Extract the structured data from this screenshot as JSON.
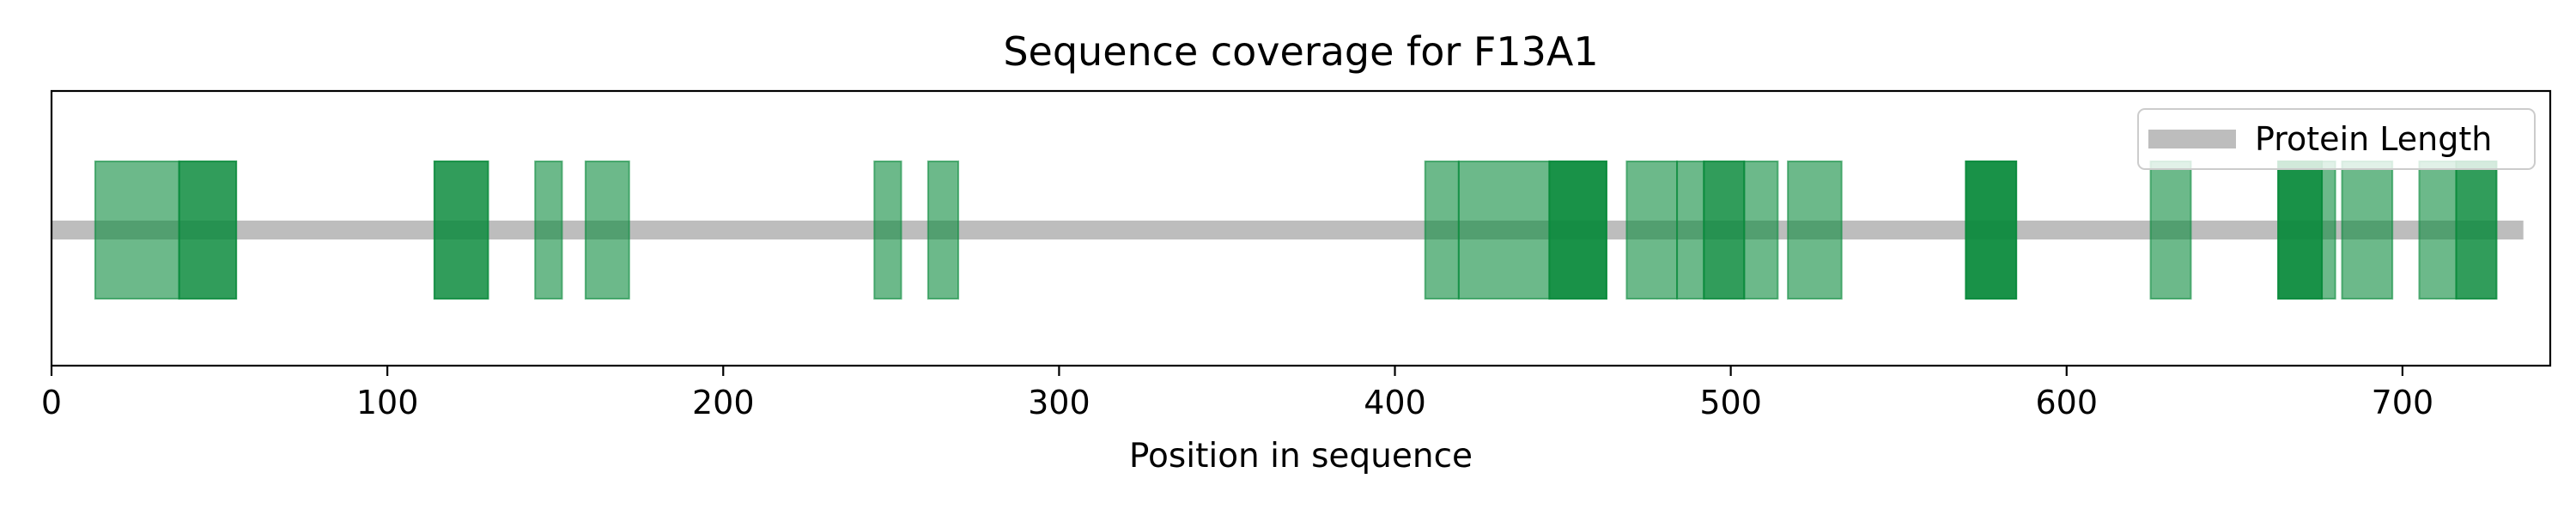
{
  "chart_data": {
    "type": "bar",
    "title": "Sequence coverage for F13A1",
    "xlabel": "Position in sequence",
    "ylabel": "",
    "xlim": [
      0,
      744
    ],
    "xticks": [
      0,
      100,
      200,
      300,
      400,
      500,
      600,
      700
    ],
    "protein_length": 736,
    "legend": {
      "label": "Protein Length",
      "location": "upper right"
    },
    "colors": {
      "peptide": "#0a8a3c",
      "protein": "#bdbdbd"
    },
    "peptide_opacity": 0.6,
    "peptides": [
      {
        "start": 13,
        "end": 38
      },
      {
        "start": 38,
        "end": 55
      },
      {
        "start": 38,
        "end": 55
      },
      {
        "start": 114,
        "end": 130
      },
      {
        "start": 114,
        "end": 130
      },
      {
        "start": 144,
        "end": 152
      },
      {
        "start": 159,
        "end": 172
      },
      {
        "start": 245,
        "end": 253
      },
      {
        "start": 261,
        "end": 270
      },
      {
        "start": 409,
        "end": 419
      },
      {
        "start": 419,
        "end": 446
      },
      {
        "start": 446,
        "end": 463
      },
      {
        "start": 446,
        "end": 463
      },
      {
        "start": 446,
        "end": 463
      },
      {
        "start": 469,
        "end": 484
      },
      {
        "start": 484,
        "end": 492
      },
      {
        "start": 492,
        "end": 504
      },
      {
        "start": 492,
        "end": 504
      },
      {
        "start": 504,
        "end": 514
      },
      {
        "start": 517,
        "end": 533
      },
      {
        "start": 570,
        "end": 585
      },
      {
        "start": 570,
        "end": 585
      },
      {
        "start": 570,
        "end": 585
      },
      {
        "start": 625,
        "end": 637
      },
      {
        "start": 663,
        "end": 676
      },
      {
        "start": 663,
        "end": 676
      },
      {
        "start": 663,
        "end": 676
      },
      {
        "start": 676,
        "end": 680
      },
      {
        "start": 682,
        "end": 697
      },
      {
        "start": 705,
        "end": 716
      },
      {
        "start": 716,
        "end": 728
      },
      {
        "start": 716,
        "end": 728
      }
    ]
  }
}
